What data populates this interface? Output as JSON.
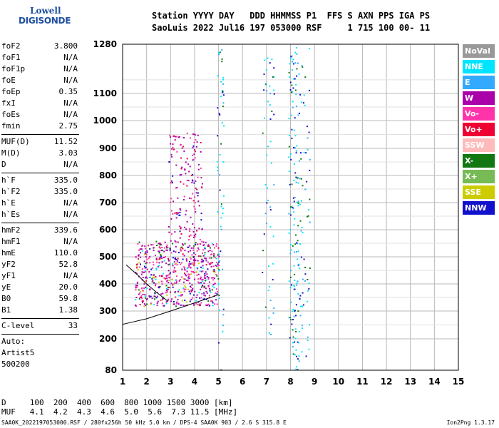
{
  "logo": {
    "line1": "Lowell",
    "line2": "DIGISONDE"
  },
  "header": {
    "line1": "Station YYYY DAY   DDD HHMMSS P1  FFS S AXN PPS IGA PS",
    "line2": "SaoLuis 2022 Jul16 197 053000 RSF     1 715 100 00- 11"
  },
  "params": [
    {
      "name": "foF2",
      "value": "3.800"
    },
    {
      "name": "foF1",
      "value": "N/A"
    },
    {
      "name": "foF1p",
      "value": "N/A"
    },
    {
      "name": "foE",
      "value": "N/A"
    },
    {
      "name": "foEp",
      "value": "0.35"
    },
    {
      "name": "fxI",
      "value": "N/A"
    },
    {
      "name": "foEs",
      "value": "N/A"
    },
    {
      "name": "fmin",
      "value": "2.75"
    },
    {
      "name": "MUF(D)",
      "value": "11.52",
      "sep": true
    },
    {
      "name": "M(D)",
      "value": "3.03"
    },
    {
      "name": "D",
      "value": "N/A"
    },
    {
      "name": "h`F",
      "value": "335.0",
      "sep": true
    },
    {
      "name": "h`F2",
      "value": "335.0"
    },
    {
      "name": "h`E",
      "value": "N/A"
    },
    {
      "name": "h`Es",
      "value": "N/A"
    },
    {
      "name": "hmF2",
      "value": "339.6",
      "sep": true
    },
    {
      "name": "hmF1",
      "value": "N/A"
    },
    {
      "name": "hmE",
      "value": "110.0"
    },
    {
      "name": "yF2",
      "value": "52.8"
    },
    {
      "name": "yF1",
      "value": "N/A"
    },
    {
      "name": "yE",
      "value": "20.0"
    },
    {
      "name": "B0",
      "value": "59.8"
    },
    {
      "name": "B1",
      "value": "1.38"
    },
    {
      "name": "C-level",
      "value": "33",
      "sep": true
    }
  ],
  "auto": {
    "line1": "Auto:",
    "line2": "Artist5",
    "line3": "500200"
  },
  "legend": [
    {
      "label": "NoVal",
      "color": "#999999"
    },
    {
      "label": "NNE",
      "color": "#00e5ff"
    },
    {
      "label": "E",
      "color": "#33aaff"
    },
    {
      "label": "W",
      "color": "#aa00aa"
    },
    {
      "label": "Vo-",
      "color": "#ff33aa"
    },
    {
      "label": "Vo+",
      "color": "#ee0033"
    },
    {
      "label": "SSW",
      "color": "#ffbbbb"
    },
    {
      "label": "X-",
      "color": "#117711"
    },
    {
      "label": "X+",
      "color": "#77bb55"
    },
    {
      "label": "SSE",
      "color": "#cccc00"
    },
    {
      "label": "NNW",
      "color": "#1111cc"
    }
  ],
  "muf_table": {
    "d_line": "D     100  200  400  600  800 1000 1500 3000 [km]",
    "muf_line": "MUF   4.1  4.2  4.3  4.6  5.0  5.6  7.3 11.5 [MHz]"
  },
  "footer": {
    "left": "SAA0K_2022197053000.RSF / 280fx256h 50 kHz 5.0 km / DPS-4 SAA0K 903 / 2.6 S 315.8 E",
    "right": "Ion2Png 1.3.17"
  },
  "chart_data": {
    "type": "scatter",
    "x_ticks": [
      "1",
      "2",
      "3",
      "4",
      "5",
      "6",
      "7",
      "8",
      "9",
      "10",
      "11",
      "12",
      "13",
      "14",
      "15"
    ],
    "y_ticks": [
      "80",
      "200",
      "300",
      "400",
      "500",
      "600",
      "700",
      "800",
      "900",
      "1000",
      "1100",
      "1280"
    ],
    "xlim": [
      1,
      15
    ],
    "ylim": [
      80,
      1280
    ],
    "y_tick_values": [
      80,
      200,
      300,
      400,
      500,
      600,
      700,
      800,
      900,
      1000,
      1100,
      1280
    ],
    "y_scale": "piecewise-linear",
    "grid": true,
    "traces": [
      {
        "name": "",
        "points": [
          [
            1.0,
            252
          ],
          [
            2.0,
            272
          ],
          [
            3.0,
            300
          ],
          [
            4.0,
            330
          ],
          [
            5.0,
            360
          ]
        ]
      },
      {
        "name": "",
        "points": [
          [
            1.15,
            470
          ],
          [
            1.6,
            435
          ],
          [
            2.0,
            400
          ],
          [
            2.4,
            370
          ],
          [
            2.9,
            335
          ]
        ]
      }
    ],
    "clusters": [
      {
        "x": [
          1.5,
          5.0
        ],
        "y": [
          320,
          560
        ],
        "density": "high"
      },
      {
        "x": [
          2.9,
          4.3
        ],
        "y": [
          560,
          960
        ],
        "density": "medium"
      },
      {
        "x": [
          4.9,
          5.2
        ],
        "y": [
          80,
          1280
        ],
        "density": "low"
      },
      {
        "x": [
          6.8,
          7.3
        ],
        "y": [
          200,
          1260
        ],
        "density": "low"
      },
      {
        "x": [
          7.9,
          8.4
        ],
        "y": [
          80,
          1280
        ],
        "density": "medium"
      },
      {
        "x": [
          8.4,
          8.8
        ],
        "y": [
          100,
          1270
        ],
        "density": "low"
      }
    ]
  }
}
